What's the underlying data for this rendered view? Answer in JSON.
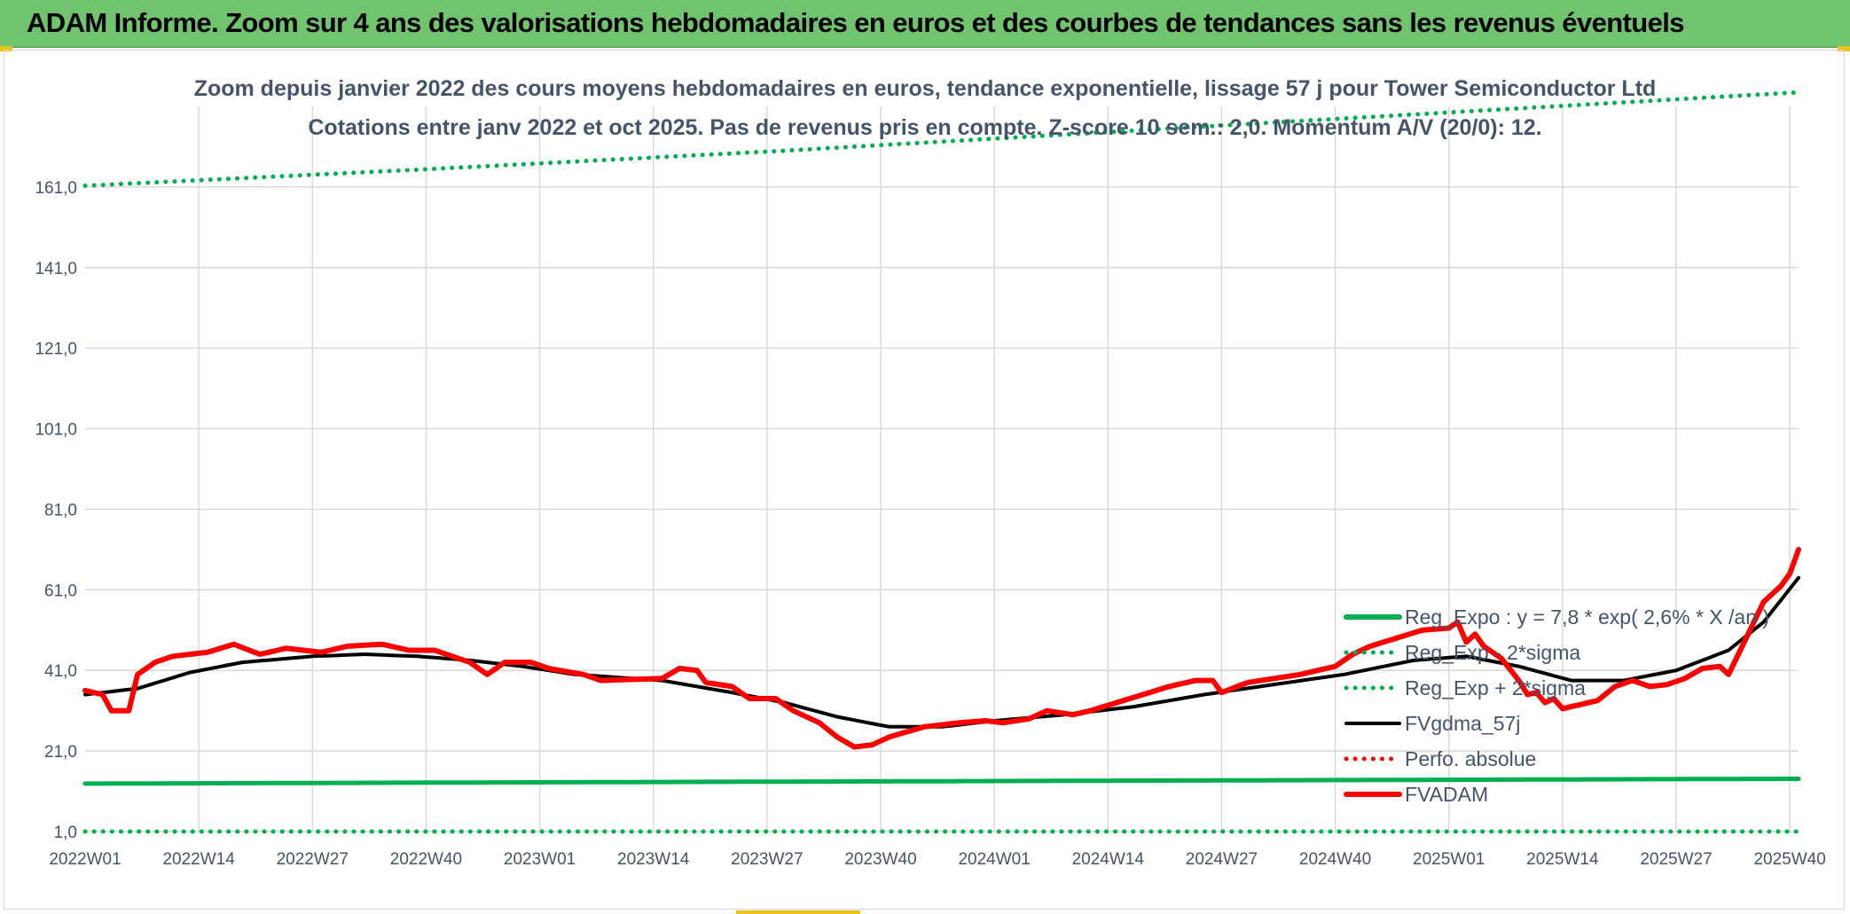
{
  "header": {
    "title": "ADAM Informe. Zoom sur 4 ans des valorisations hebdomadaires en euros et des courbes de tendances sans les revenus éventuels"
  },
  "chart_data": {
    "type": "line",
    "title": "Zoom depuis janvier 2022 des cours moyens hebdomadaires en euros, tendance exponentielle, lissage 57 j pour Tower Semiconductor Ltd",
    "subtitle": "Cotations entre janv 2022 et oct 2025. Pas de revenus pris en compte. Z-score 10 sem.: 2,0. Momentum A/V (20/0): 12.",
    "xlabel": "",
    "ylabel": "",
    "ylim": [
      1,
      181
    ],
    "grid": true,
    "yticks": [
      1,
      21,
      41,
      61,
      81,
      101,
      121,
      141,
      161
    ],
    "ytick_labels": [
      "1,0",
      "21,0",
      "41,0",
      "61,0",
      "81,0",
      "101,0",
      "121,0",
      "141,0",
      "161,0"
    ],
    "x_count": 197,
    "xtick_positions": [
      0,
      13,
      26,
      39,
      52,
      65,
      78,
      91,
      104,
      117,
      130,
      143,
      156,
      169,
      182,
      195
    ],
    "xtick_labels": [
      "2022W01",
      "2022W14",
      "2022W27",
      "2022W40",
      "2023W01",
      "2023W14",
      "2023W27",
      "2023W40",
      "2024W01",
      "2024W14",
      "2024W27",
      "2024W40",
      "2025W01",
      "2025W14",
      "2025W27",
      "2025W40"
    ],
    "legend_position": "bottom-right",
    "series": [
      {
        "name": "Reg_Expo : y = 7,8 * exp( 2,6% *  X  /an )",
        "style": "thick-solid",
        "color": "#00b050",
        "anchors": [
          [
            0,
            12.9
          ],
          [
            196,
            14.1
          ]
        ]
      },
      {
        "name": "Reg_Exp - 2*sigma",
        "style": "dotted",
        "color": "#00b050",
        "anchors": [
          [
            0,
            1.0
          ],
          [
            196,
            1.0
          ]
        ]
      },
      {
        "name": "Reg_Exp + 2*sigma",
        "style": "dotted",
        "color": "#00b050",
        "anchors": [
          [
            0,
            161.3
          ],
          [
            40,
            165.5
          ],
          [
            80,
            170.0
          ],
          [
            120,
            175.0
          ],
          [
            160,
            180.0
          ],
          [
            196,
            184.5
          ]
        ]
      },
      {
        "name": "FVgdma_57j",
        "style": "solid",
        "color": "#000000",
        "anchors": [
          [
            0,
            35
          ],
          [
            6,
            36.5
          ],
          [
            12,
            40.5
          ],
          [
            18,
            43
          ],
          [
            26,
            44.5
          ],
          [
            32,
            45
          ],
          [
            38,
            44.5
          ],
          [
            44,
            43.5
          ],
          [
            50,
            42
          ],
          [
            56,
            40
          ],
          [
            66,
            38.5
          ],
          [
            74,
            35.5
          ],
          [
            80,
            33
          ],
          [
            86,
            29.5
          ],
          [
            92,
            27
          ],
          [
            98,
            27
          ],
          [
            104,
            28.5
          ],
          [
            112,
            30
          ],
          [
            120,
            32
          ],
          [
            128,
            35
          ],
          [
            136,
            37.5
          ],
          [
            144,
            40
          ],
          [
            152,
            43.5
          ],
          [
            158,
            44.5
          ],
          [
            164,
            42
          ],
          [
            170,
            38.5
          ],
          [
            176,
            38.5
          ],
          [
            182,
            41
          ],
          [
            188,
            46
          ],
          [
            192,
            53
          ],
          [
            196,
            64
          ]
        ]
      },
      {
        "name": "Perfo. absolue",
        "style": "dotted",
        "color": "#ff0000",
        "anchors": []
      },
      {
        "name": "FVADAM",
        "style": "thick-solid",
        "color": "#ff0000",
        "anchors": [
          [
            0,
            36
          ],
          [
            2,
            35
          ],
          [
            3,
            31
          ],
          [
            5,
            31
          ],
          [
            6,
            40
          ],
          [
            8,
            43
          ],
          [
            10,
            44.5
          ],
          [
            14,
            45.5
          ],
          [
            17,
            47.5
          ],
          [
            20,
            45
          ],
          [
            23,
            46.5
          ],
          [
            27,
            45.5
          ],
          [
            30,
            47
          ],
          [
            34,
            47.5
          ],
          [
            37,
            46
          ],
          [
            40,
            46
          ],
          [
            44,
            43
          ],
          [
            46,
            40
          ],
          [
            48,
            43
          ],
          [
            51,
            43
          ],
          [
            53,
            41.5
          ],
          [
            57,
            40
          ],
          [
            59,
            38.5
          ],
          [
            66,
            39
          ],
          [
            68,
            41.5
          ],
          [
            70,
            41
          ],
          [
            71,
            38
          ],
          [
            74,
            37
          ],
          [
            76,
            34
          ],
          [
            79,
            34
          ],
          [
            81,
            31
          ],
          [
            84,
            28
          ],
          [
            86,
            24.5
          ],
          [
            88,
            22
          ],
          [
            90,
            22.5
          ],
          [
            92,
            24.5
          ],
          [
            96,
            27
          ],
          [
            100,
            28
          ],
          [
            103,
            28.5
          ],
          [
            105,
            28
          ],
          [
            108,
            29
          ],
          [
            110,
            31
          ],
          [
            113,
            30
          ],
          [
            115,
            31
          ],
          [
            118,
            33
          ],
          [
            121,
            35
          ],
          [
            124,
            37
          ],
          [
            127,
            38.5
          ],
          [
            129,
            38.5
          ],
          [
            130,
            35.5
          ],
          [
            133,
            38
          ],
          [
            136,
            39
          ],
          [
            139,
            40
          ],
          [
            141,
            41
          ],
          [
            143,
            42
          ],
          [
            145,
            45
          ],
          [
            147,
            47
          ],
          [
            150,
            49
          ],
          [
            153,
            51
          ],
          [
            156,
            51.5
          ],
          [
            157,
            53
          ],
          [
            158,
            48
          ],
          [
            159,
            50
          ],
          [
            160,
            47
          ],
          [
            162,
            44
          ],
          [
            164,
            38.5
          ],
          [
            165,
            35
          ],
          [
            166,
            35.5
          ],
          [
            167,
            33
          ],
          [
            168,
            34
          ],
          [
            169,
            31.5
          ],
          [
            171,
            32.5
          ],
          [
            173,
            33.5
          ],
          [
            175,
            37
          ],
          [
            177,
            38.5
          ],
          [
            179,
            37
          ],
          [
            181,
            37.5
          ],
          [
            183,
            39
          ],
          [
            185,
            41.5
          ],
          [
            187,
            42
          ],
          [
            188,
            40
          ],
          [
            190,
            49
          ],
          [
            192,
            58
          ],
          [
            194,
            62
          ],
          [
            195,
            65
          ],
          [
            196,
            71
          ]
        ]
      }
    ]
  }
}
